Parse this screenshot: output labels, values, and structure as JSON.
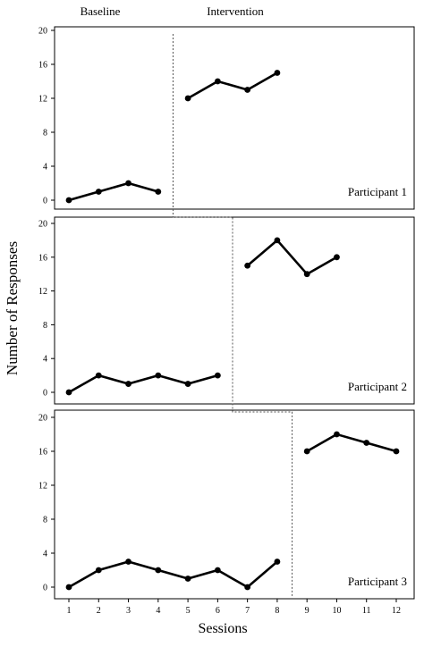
{
  "chart_data": [
    {
      "type": "line",
      "panel": "Participant 1",
      "ylim": [
        0,
        20
      ],
      "yticks": [
        0,
        4,
        8,
        12,
        16,
        20
      ],
      "xlim": [
        0.5,
        12.5
      ],
      "baseline": {
        "x": [
          1,
          2,
          3,
          4
        ],
        "y": [
          0,
          1,
          2,
          1
        ]
      },
      "intervention": {
        "x": [
          5,
          6,
          7,
          8
        ],
        "y": [
          12,
          14,
          13,
          15
        ]
      },
      "phase_change_after": 4.5
    },
    {
      "type": "line",
      "panel": "Participant 2",
      "ylim": [
        0,
        20
      ],
      "yticks": [
        0,
        4,
        8,
        12,
        16,
        20
      ],
      "xlim": [
        0.5,
        12.5
      ],
      "baseline": {
        "x": [
          1,
          2,
          3,
          4,
          5,
          6
        ],
        "y": [
          0,
          2,
          1,
          2,
          1,
          2
        ]
      },
      "intervention": {
        "x": [
          7,
          8,
          9,
          10
        ],
        "y": [
          15,
          18,
          14,
          16
        ]
      },
      "phase_change_after": 6.5
    },
    {
      "type": "line",
      "panel": "Participant 3",
      "ylim": [
        0,
        20
      ],
      "yticks": [
        0,
        4,
        8,
        12,
        16,
        20
      ],
      "xlim": [
        0.5,
        12.5
      ],
      "xticks": [
        1,
        2,
        3,
        4,
        5,
        6,
        7,
        8,
        9,
        10,
        11,
        12
      ],
      "baseline": {
        "x": [
          1,
          2,
          3,
          4,
          5,
          6,
          7,
          8
        ],
        "y": [
          0,
          2,
          3,
          2,
          1,
          2,
          0,
          3
        ]
      },
      "intervention": {
        "x": [
          9,
          10,
          11,
          12
        ],
        "y": [
          16,
          18,
          17,
          16
        ]
      },
      "phase_change_after": 8.5
    }
  ],
  "labels": {
    "phase_baseline": "Baseline",
    "phase_intervention": "Intervention",
    "ylabel": "Number of Responses",
    "xlabel": "Sessions"
  }
}
